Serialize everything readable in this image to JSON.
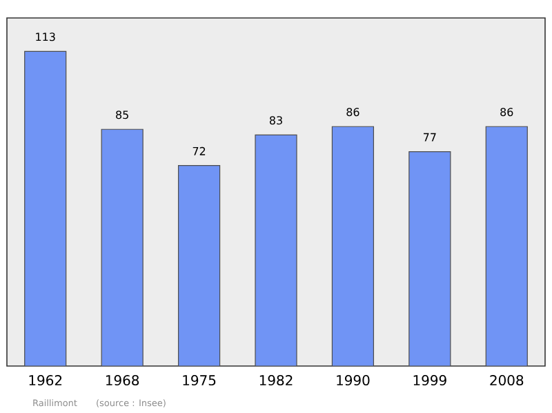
{
  "chart_data": {
    "type": "bar",
    "categories": [
      "1962",
      "1968",
      "1975",
      "1982",
      "1990",
      "1999",
      "2008"
    ],
    "values": [
      113,
      85,
      72,
      83,
      86,
      77,
      86
    ],
    "color": "#7094f5",
    "ylim": [
      0,
      125
    ],
    "tick_labels": "x",
    "data_labels": true,
    "annotations": [
      "Raillimont",
      "(source : Insee)"
    ]
  }
}
